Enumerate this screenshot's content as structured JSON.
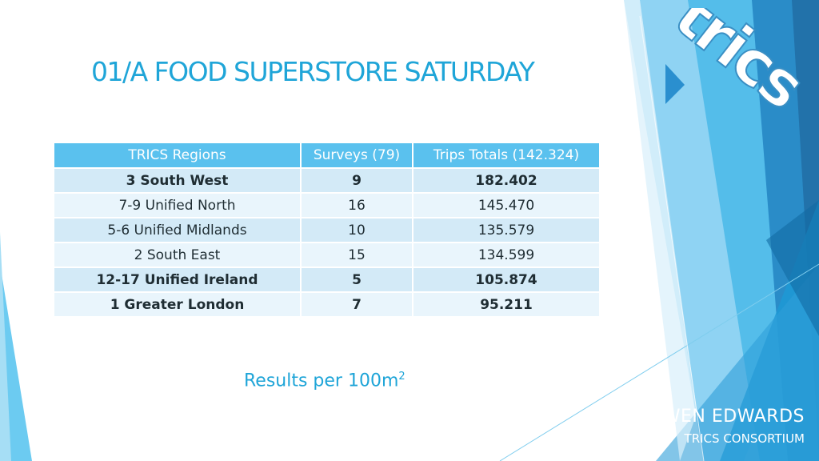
{
  "slide": {
    "title": "01/A FOOD SUPERSTORE SATURDAY",
    "logo_text": "trics",
    "table": {
      "headers": [
        "TRICS Regions",
        "Surveys (79)",
        "Trips Totals (142.324)"
      ],
      "rows": [
        {
          "region": "3 South West",
          "surveys": "9",
          "trips": "182.402"
        },
        {
          "region": "7-9 Unified North",
          "surveys": "16",
          "trips": "145.470"
        },
        {
          "region": "5-6 Unified Midlands",
          "surveys": "10",
          "trips": "135.579"
        },
        {
          "region": "2 South East",
          "surveys": "15",
          "trips": "134.599"
        },
        {
          "region": "12-17 Unified Ireland",
          "surveys": "5",
          "trips": "105.874"
        },
        {
          "region": "1 Greater London",
          "surveys": "7",
          "trips": "95.211"
        }
      ]
    },
    "note": {
      "text": "Results per 100m",
      "superscript": "2"
    },
    "author": {
      "name": "OWEN EDWARDS",
      "organization": "TRICS CONSORTIUM"
    }
  },
  "colors": {
    "accent": "#1fa5d8",
    "header_bg": "#5ac1ee",
    "row_dark": "#d3eaf7",
    "row_light": "#e9f5fc",
    "deco_dark": "#2272aa"
  }
}
